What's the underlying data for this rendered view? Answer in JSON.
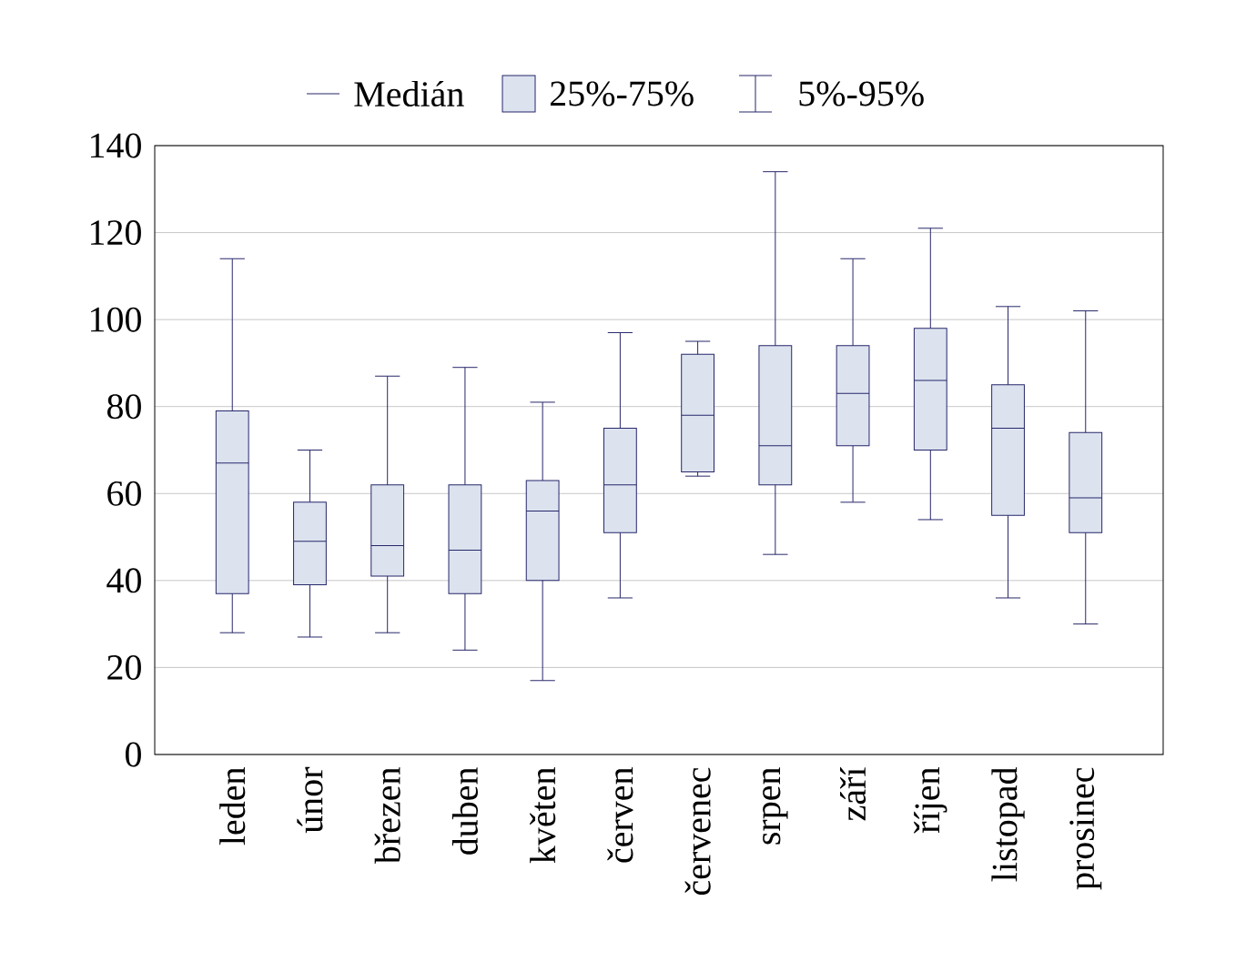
{
  "chart_data": {
    "type": "box",
    "categories": [
      "leden",
      "únor",
      "březen",
      "duben",
      "květen",
      "červen",
      "červenec",
      "srpen",
      "září",
      "říjen",
      "listopad",
      "prosinec"
    ],
    "boxes": [
      {
        "low": 28,
        "q1": 37,
        "median": 67,
        "q3": 79,
        "high": 114
      },
      {
        "low": 27,
        "q1": 39,
        "median": 49,
        "q3": 58,
        "high": 70
      },
      {
        "low": 28,
        "q1": 41,
        "median": 48,
        "q3": 62,
        "high": 87
      },
      {
        "low": 24,
        "q1": 37,
        "median": 47,
        "q3": 62,
        "high": 89
      },
      {
        "low": 17,
        "q1": 40,
        "median": 56,
        "q3": 63,
        "high": 81
      },
      {
        "low": 36,
        "q1": 51,
        "median": 62,
        "q3": 75,
        "high": 97
      },
      {
        "low": 64,
        "q1": 65,
        "median": 78,
        "q3": 92,
        "high": 95
      },
      {
        "low": 46,
        "q1": 62,
        "median": 71,
        "q3": 94,
        "high": 134
      },
      {
        "low": 58,
        "q1": 71,
        "median": 83,
        "q3": 94,
        "high": 114
      },
      {
        "low": 54,
        "q1": 70,
        "median": 86,
        "q3": 98,
        "high": 121
      },
      {
        "low": 36,
        "q1": 55,
        "median": 75,
        "q3": 85,
        "high": 103
      },
      {
        "low": 30,
        "q1": 51,
        "median": 59,
        "q3": 74,
        "high": 102
      }
    ],
    "color": "#dce3ef",
    "ylim": [
      0,
      140
    ],
    "yticks": [
      0,
      20,
      40,
      60,
      80,
      100,
      120,
      140
    ],
    "grid": "y",
    "annotations": [
      "Medián",
      "25%-75%",
      "5%-95%"
    ]
  }
}
